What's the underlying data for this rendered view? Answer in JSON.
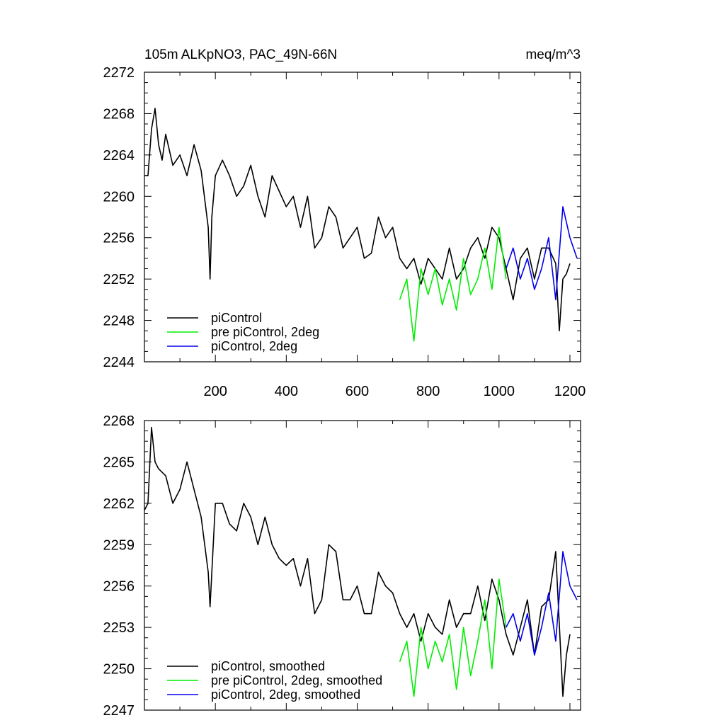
{
  "chart_data": [
    {
      "type": "line",
      "title_left": "105m ALKpNO3, PAC_49N-66N",
      "title_right": "meq/m^3",
      "xlim": [
        0,
        1230
      ],
      "ylim": [
        2244,
        2272
      ],
      "xticks": [
        200,
        400,
        600,
        800,
        1000,
        1200
      ],
      "xtick_labels": [
        "200",
        "400",
        "600",
        "800",
        "1000",
        "1200"
      ],
      "yticks": [
        2244,
        2248,
        2252,
        2256,
        2260,
        2264,
        2268,
        2272
      ],
      "ytick_labels": [
        "2244",
        "2248",
        "2252",
        "2256",
        "2260",
        "2264",
        "2268",
        "2272"
      ],
      "legend_position": "bottom-left",
      "series": [
        {
          "name": "piControl",
          "color": "#000000",
          "x": [
            0,
            10,
            20,
            30,
            40,
            50,
            60,
            80,
            100,
            120,
            140,
            160,
            180,
            185,
            190,
            200,
            220,
            240,
            260,
            280,
            300,
            320,
            340,
            360,
            380,
            400,
            420,
            440,
            460,
            480,
            500,
            520,
            540,
            560,
            580,
            600,
            620,
            640,
            660,
            680,
            700,
            720,
            740,
            760,
            780,
            800,
            820,
            840,
            860,
            880,
            900,
            920,
            940,
            960,
            980,
            1000,
            1020,
            1040,
            1060,
            1080,
            1100,
            1120,
            1140,
            1160,
            1170,
            1180,
            1190,
            1200
          ],
          "values": [
            2262,
            2262,
            2266.5,
            2268.5,
            2265,
            2263.5,
            2266,
            2263,
            2264,
            2262,
            2265,
            2262.5,
            2257,
            2252,
            2258,
            2262,
            2263.5,
            2262,
            2260,
            2261,
            2263,
            2260,
            2258,
            2262,
            2260.5,
            2259,
            2260,
            2257,
            2260,
            2255,
            2256,
            2259,
            2258,
            2255,
            2256,
            2257,
            2254,
            2254.5,
            2258,
            2256,
            2257,
            2254,
            2253,
            2254,
            2251.5,
            2254,
            2253,
            2252,
            2255,
            2252,
            2253,
            2255,
            2256,
            2254,
            2257,
            2256,
            2253,
            2250,
            2254,
            2255,
            2252,
            2255,
            2255,
            2253.5,
            2247,
            2252,
            2252.5,
            2253.5
          ]
        },
        {
          "name": "pre piControl, 2deg",
          "color": "#00ee00",
          "x": [
            720,
            740,
            760,
            780,
            800,
            820,
            840,
            860,
            880,
            900,
            920,
            940,
            960,
            980,
            1000,
            1020
          ],
          "values": [
            2250,
            2252,
            2246,
            2253,
            2250.5,
            2253,
            2249.5,
            2252,
            2249,
            2254,
            2250.5,
            2252,
            2255,
            2251,
            2257,
            2252
          ]
        },
        {
          "name": "piControl, 2deg",
          "color": "#0000ee",
          "x": [
            1020,
            1040,
            1060,
            1080,
            1100,
            1120,
            1140,
            1160,
            1180,
            1200,
            1220
          ],
          "values": [
            2253,
            2255,
            2252,
            2254,
            2251,
            2253,
            2256,
            2250,
            2259,
            2256,
            2254
          ]
        }
      ]
    },
    {
      "type": "line",
      "xlim": [
        0,
        1230
      ],
      "ylim": [
        2247,
        2268
      ],
      "xticks": [
        200,
        400,
        600,
        800,
        1000,
        1200
      ],
      "yticks": [
        2247,
        2250,
        2253,
        2256,
        2259,
        2262,
        2265,
        2268
      ],
      "ytick_labels": [
        "2247",
        "2250",
        "2253",
        "2256",
        "2259",
        "2262",
        "2265",
        "2268"
      ],
      "legend_position": "bottom-left",
      "series": [
        {
          "name": "piControl, smoothed",
          "color": "#000000",
          "x": [
            0,
            10,
            20,
            30,
            40,
            60,
            80,
            100,
            120,
            140,
            160,
            180,
            185,
            190,
            200,
            220,
            240,
            260,
            280,
            300,
            320,
            340,
            360,
            380,
            400,
            420,
            440,
            460,
            480,
            500,
            520,
            540,
            560,
            580,
            600,
            620,
            640,
            660,
            680,
            700,
            720,
            740,
            760,
            780,
            800,
            820,
            840,
            860,
            880,
            900,
            920,
            940,
            960,
            980,
            1000,
            1020,
            1040,
            1060,
            1080,
            1100,
            1120,
            1140,
            1160,
            1180,
            1190,
            1200
          ],
          "values": [
            2261.5,
            2262,
            2267.5,
            2265,
            2264.5,
            2264,
            2262,
            2263,
            2265,
            2263,
            2261,
            2257,
            2254.5,
            2257,
            2262,
            2262,
            2260.5,
            2260,
            2262,
            2261,
            2259,
            2261,
            2259,
            2258,
            2257.5,
            2258,
            2256,
            2258,
            2254,
            2255,
            2259,
            2258.5,
            2255,
            2255,
            2256,
            2254,
            2254,
            2257,
            2256,
            2255.5,
            2254,
            2253,
            2254,
            2252,
            2254,
            2253,
            2252.5,
            2255,
            2253,
            2254,
            2254,
            2256,
            2253.5,
            2256.5,
            2255,
            2252.5,
            2251,
            2253,
            2255,
            2251,
            2254.5,
            2255,
            2258.5,
            2248,
            2251,
            2252.5
          ]
        },
        {
          "name": "pre piControl, 2deg, smoothed",
          "color": "#00ee00",
          "x": [
            720,
            740,
            760,
            780,
            800,
            820,
            840,
            860,
            880,
            900,
            920,
            940,
            960,
            980,
            1000,
            1020
          ],
          "values": [
            2250.5,
            2252,
            2248,
            2253,
            2250,
            2252,
            2250.5,
            2252.5,
            2248.5,
            2253,
            2249.5,
            2252,
            2255,
            2250,
            2256.5,
            2253
          ]
        },
        {
          "name": "piControl, 2deg, smoothed",
          "color": "#0000ee",
          "x": [
            1020,
            1040,
            1060,
            1080,
            1100,
            1120,
            1140,
            1160,
            1180,
            1200,
            1220
          ],
          "values": [
            2253,
            2254,
            2252,
            2254,
            2251,
            2253,
            2255.5,
            2252,
            2258.5,
            2256,
            2255
          ]
        }
      ]
    }
  ]
}
